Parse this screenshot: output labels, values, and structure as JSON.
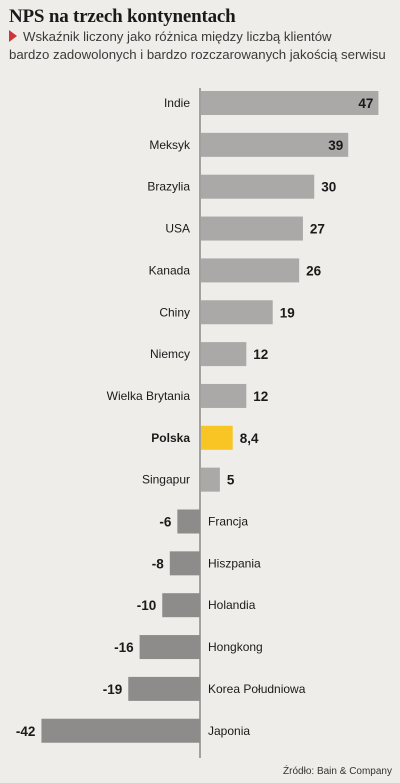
{
  "title": "NPS na trzech kontynentach",
  "subtitle_line1": "Wskaźnik liczony jako różnica między liczbą klientów",
  "subtitle_line2": "bardzo zadowolonych i bardzo rozczarowanych jakością serwisu",
  "source": "Źródło: Bain & Company",
  "colors": {
    "positive": "#aaa9a7",
    "negative": "#8e8c8a",
    "highlight": "#f8c524",
    "accent_triangle": "#d0343a",
    "axis": "#555555"
  },
  "chart_data": {
    "type": "bar",
    "orientation": "horizontal",
    "categories": [
      "Indie",
      "Meksyk",
      "Brazylia",
      "USA",
      "Kanada",
      "Chiny",
      "Niemcy",
      "Wielka Brytania",
      "Polska",
      "Singapur",
      "Francja",
      "Hiszpania",
      "Holandia",
      "Hongkong",
      "Korea Południowa",
      "Japonia"
    ],
    "values": [
      47,
      39,
      30,
      27,
      26,
      19,
      12,
      12,
      8.4,
      5,
      -6,
      -8,
      -10,
      -16,
      -19,
      -42
    ],
    "value_labels": [
      "47",
      "39",
      "30",
      "27",
      "26",
      "19",
      "12",
      "12",
      "8,4",
      "5",
      "-6",
      "-8",
      "-10",
      "-16",
      "-19",
      "-42"
    ],
    "highlight": "Polska",
    "grid": false
  }
}
